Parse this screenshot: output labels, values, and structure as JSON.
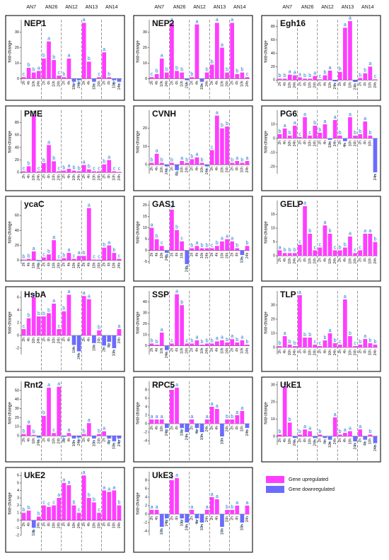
{
  "strains": [
    "AN7",
    "AN26",
    "AN12",
    "AN13",
    "AN14"
  ],
  "time_points": [
    "2h",
    "4h",
    "10h",
    "24h"
  ],
  "y_label": "fold-change",
  "legend": {
    "up": {
      "label": "Gene upregulated",
      "color": "#ff3dff"
    },
    "down": {
      "label": "Gene downregulated",
      "color": "#6b6bff"
    }
  },
  "chart_data": [
    {
      "type": "bar",
      "title": "NEP1",
      "ylim": [
        -3,
        38
      ],
      "yticks": [
        0,
        10,
        20,
        30
      ],
      "values": [
        1,
        7,
        4,
        5,
        13,
        24,
        12,
        2,
        1,
        13,
        -2,
        -1,
        36,
        11,
        -2,
        1,
        17,
        1,
        -1,
        -2
      ],
      "letters": [
        "c",
        "b",
        "b",
        "a",
        "b",
        "a",
        "b",
        "c",
        "b",
        "a",
        "b",
        "b",
        "a",
        "b",
        "c",
        "c",
        "a",
        "b",
        "b",
        "c"
      ]
    },
    {
      "type": "bar",
      "title": "NEP2",
      "ylim": [
        -3,
        38
      ],
      "yticks": [
        0,
        10,
        20,
        30
      ],
      "values": [
        1,
        3,
        13,
        4,
        36,
        5,
        4,
        -1,
        1,
        35,
        -2,
        4,
        9,
        36,
        20,
        4,
        36,
        3,
        4,
        1
      ],
      "letters": [
        "c",
        "b",
        "a",
        "b",
        "a",
        "b",
        "b",
        "c",
        "b",
        "a",
        "c",
        "b",
        "b",
        "a",
        "a",
        "b",
        "a",
        "b",
        "b",
        "c"
      ]
    },
    {
      "type": "bar",
      "title": "Egh16",
      "ylim": [
        -5,
        90
      ],
      "yticks": [
        0,
        20,
        40,
        60,
        80
      ],
      "values": [
        2,
        2,
        8,
        7,
        4,
        2,
        2,
        6,
        1,
        7,
        14,
        -2,
        12,
        78,
        88,
        -3,
        3,
        10,
        20,
        1
      ],
      "letters": [
        "b",
        "b",
        "a",
        "a",
        "a",
        "b",
        "b",
        "a",
        "c",
        "b",
        "a",
        "c",
        "b",
        "a",
        "a",
        "c",
        "b",
        "b",
        "a",
        "c"
      ]
    },
    {
      "type": "bar",
      "title": "PME",
      "ylim": [
        -2,
        100
      ],
      "yticks": [
        0,
        20,
        40,
        60,
        80
      ],
      "values": [
        2,
        10,
        92,
        2,
        15,
        44,
        18,
        2,
        3,
        6,
        3,
        2,
        12,
        5,
        2,
        2,
        13,
        20,
        2,
        1
      ],
      "letters": [
        "c",
        "b",
        "a",
        "c",
        "b",
        "a",
        "b",
        "c",
        "b",
        "a",
        "b",
        "b",
        "a",
        "b",
        "c",
        "c",
        "b",
        "a",
        "c",
        "c"
      ]
    },
    {
      "type": "bar",
      "title": "CVNH",
      "ylim": [
        -5,
        30
      ],
      "yticks": [
        0,
        10,
        20
      ],
      "values": [
        1,
        6,
        1,
        -1,
        1,
        -3,
        2,
        1,
        3,
        4,
        1,
        -1,
        8,
        27,
        20,
        21,
        1,
        2,
        1,
        2
      ],
      "letters": [
        "b",
        "a",
        "b",
        "c",
        "b",
        "d",
        "a",
        "b",
        "b",
        "a",
        "b",
        "c",
        "c",
        "a",
        "b",
        "b",
        "b",
        "a",
        "b",
        "a"
      ]
    },
    {
      "type": "bar",
      "title": "PG6",
      "ylim": [
        -25,
        20
      ],
      "yticks": [
        -20,
        -10,
        0,
        10
      ],
      "values": [
        3,
        7,
        2,
        9,
        1,
        15,
        2,
        9,
        4,
        10,
        -1,
        13,
        2,
        -2,
        15,
        2,
        3,
        12,
        2,
        -24
      ],
      "letters": [
        "b",
        "a",
        "b",
        "a",
        "c",
        "a",
        "c",
        "b",
        "b",
        "a",
        "c",
        "a",
        "b",
        "c",
        "a",
        "b",
        "b",
        "a",
        "b",
        "c"
      ]
    },
    {
      "type": "bar",
      "title": "ycaC",
      "ylim": [
        -5,
        80
      ],
      "yticks": [
        0,
        20,
        40,
        60
      ],
      "values": [
        1,
        2,
        12,
        -1,
        4,
        8,
        27,
        1,
        3,
        10,
        2,
        6,
        6,
        70,
        1,
        1,
        17,
        20,
        10,
        2
      ],
      "letters": [
        "b",
        "b",
        "a",
        "c",
        "c",
        "b",
        "a",
        "c",
        "b",
        "a",
        "c",
        "a",
        "b",
        "a",
        "c",
        "c",
        "b",
        "a",
        "b",
        "c"
      ]
    },
    {
      "type": "bar",
      "title": "GAS1",
      "ylim": [
        -6,
        22
      ],
      "yticks": [
        -5,
        0,
        5,
        10,
        15,
        20
      ],
      "values": [
        10,
        5,
        2,
        -1,
        18,
        9,
        4,
        -6,
        1,
        2,
        1,
        1,
        1,
        2,
        4,
        5,
        4,
        1,
        -2,
        2
      ],
      "letters": [
        "a",
        "b",
        "c",
        "d",
        "a",
        "b",
        "c",
        "d",
        "b",
        "a",
        "b",
        "b",
        "c",
        "b",
        "a",
        "a",
        "a",
        "b",
        "c",
        "b"
      ]
    },
    {
      "type": "bar",
      "title": "GELP",
      "ylim": [
        -3,
        20
      ],
      "yticks": [
        0,
        5,
        10,
        15
      ],
      "values": [
        2,
        1,
        1,
        1,
        4,
        18,
        8,
        2,
        3,
        11,
        8,
        2,
        2,
        3,
        7,
        1,
        2,
        8,
        8,
        5
      ],
      "letters": [
        "a",
        "b",
        "b",
        "b",
        "c",
        "a",
        "b",
        "c",
        "c",
        "a",
        "b",
        "c",
        "b",
        "b",
        "a",
        "c",
        "c",
        "a",
        "a",
        "b"
      ]
    },
    {
      "type": "bar",
      "title": "HsbA",
      "ylim": [
        -3,
        7
      ],
      "yticks": [
        -2,
        0,
        2,
        4,
        6
      ],
      "values": [
        1,
        2.7,
        6,
        3,
        3,
        3.5,
        5,
        1,
        3.8,
        6.4,
        -1.5,
        -2.5,
        6.2,
        5.7,
        -1.2,
        0.8,
        -1.6,
        -1,
        -2,
        1
      ],
      "letters": [
        "c",
        "b",
        "a",
        "b",
        "b",
        "b",
        "a",
        "c",
        "b",
        "a",
        "c",
        "c",
        "a",
        "a",
        "c",
        "b",
        "c",
        "b",
        "c",
        "a"
      ]
    },
    {
      "type": "bar",
      "title": "SSP",
      "ylim": [
        -8,
        50
      ],
      "yticks": [
        0,
        10,
        20,
        30,
        40
      ],
      "values": [
        2,
        1,
        12,
        -4,
        2,
        47,
        37,
        2,
        2,
        5,
        1,
        2,
        2,
        4,
        5,
        3,
        6,
        3,
        5,
        1
      ],
      "letters": [
        "b",
        "b",
        "a",
        "c",
        "c",
        "a",
        "b",
        "c",
        "b",
        "a",
        "b",
        "b",
        "b",
        "a",
        "a",
        "b",
        "a",
        "b",
        "a",
        "b"
      ]
    },
    {
      "type": "bar",
      "title": "TLP",
      "ylim": [
        -5,
        40
      ],
      "yticks": [
        0,
        10,
        20,
        30
      ],
      "values": [
        1,
        8,
        2,
        1,
        37,
        7,
        7,
        2,
        1,
        5,
        10,
        3,
        2,
        34,
        8,
        1,
        2,
        6,
        3,
        2
      ],
      "letters": [
        "b",
        "a",
        "b",
        "b",
        "a",
        "b",
        "b",
        "c",
        "c",
        "b",
        "a",
        "b",
        "c",
        "a",
        "b",
        "c",
        "b",
        "a",
        "b",
        "b"
      ]
    },
    {
      "type": "bar",
      "title": "Rnt2",
      "ylim": [
        -10,
        60
      ],
      "yticks": [
        0,
        10,
        20,
        30,
        40,
        50
      ],
      "values": [
        2,
        12,
        1,
        -2,
        22,
        53,
        3,
        54,
        -1,
        3,
        -3,
        -2,
        2,
        14,
        -3,
        2,
        5,
        -3,
        -6,
        -3
      ],
      "letters": [
        "b",
        "a",
        "b",
        "c",
        "b",
        "a",
        "c",
        "a",
        "b",
        "a",
        "c",
        "b",
        "b",
        "a",
        "c",
        "b",
        "a",
        "b",
        "c",
        "b"
      ]
    },
    {
      "type": "bar",
      "title": "RPC5",
      "ylim": [
        -5,
        10
      ],
      "yticks": [
        -4,
        -2,
        0,
        2,
        4,
        6,
        8
      ],
      "values": [
        1,
        1,
        1,
        -1,
        8,
        8.5,
        -1,
        -2,
        1,
        -1,
        -2,
        1,
        4,
        3.5,
        -3,
        1,
        1,
        2,
        3,
        -1
      ],
      "letters": [
        "a",
        "a",
        "a",
        "b",
        "a",
        "a",
        "b",
        "c",
        "a",
        "b",
        "c",
        "a",
        "a",
        "a",
        "c",
        "b",
        "b",
        "a",
        "a",
        "c"
      ]
    },
    {
      "type": "bar",
      "title": "UkE1",
      "ylim": [
        -5,
        32
      ],
      "yticks": [
        0,
        10,
        20,
        30
      ],
      "values": [
        1,
        29,
        8,
        -1,
        1,
        4,
        3,
        -1,
        1,
        -1,
        -2,
        11,
        1,
        2,
        3,
        -3,
        4,
        -2,
        1,
        -4
      ],
      "letters": [
        "b",
        "a",
        "b",
        "c",
        "b",
        "a",
        "a",
        "c",
        "b",
        "c",
        "c",
        "a",
        "b",
        "a",
        "a",
        "c",
        "a",
        "c",
        "b",
        "c"
      ]
    },
    {
      "type": "bar",
      "title": "UkE2",
      "ylim": [
        -2,
        6.5
      ],
      "yticks": [
        -2,
        -1,
        0,
        1,
        2,
        3,
        4,
        5,
        6
      ],
      "values": [
        1,
        1.3,
        -1,
        0.5,
        2,
        1.8,
        2,
        3,
        5,
        4.7,
        2,
        1,
        6,
        3,
        2.4,
        1,
        4,
        3.8,
        4,
        2
      ],
      "letters": [
        "b",
        "b",
        "a",
        "b",
        "c",
        "c",
        "c",
        "a",
        "a",
        "a",
        "b",
        "c",
        "a",
        "b",
        "b",
        "c",
        "a",
        "a",
        "a",
        "b"
      ]
    },
    {
      "type": "bar",
      "title": "UkE3",
      "ylim": [
        -5,
        10
      ],
      "yticks": [
        -4,
        -2,
        0,
        2,
        4,
        6,
        8
      ],
      "values": [
        1,
        1,
        -3,
        -1,
        8,
        8.5,
        -1,
        -2,
        1,
        -1,
        -2,
        1,
        4,
        3.5,
        -3,
        1,
        1,
        2,
        -2,
        2
      ],
      "letters": [
        "a",
        "a",
        "c",
        "b",
        "a",
        "a",
        "b",
        "c",
        "a",
        "b",
        "c",
        "a",
        "a",
        "a",
        "c",
        "b",
        "b",
        "a",
        "c",
        "a"
      ]
    }
  ]
}
